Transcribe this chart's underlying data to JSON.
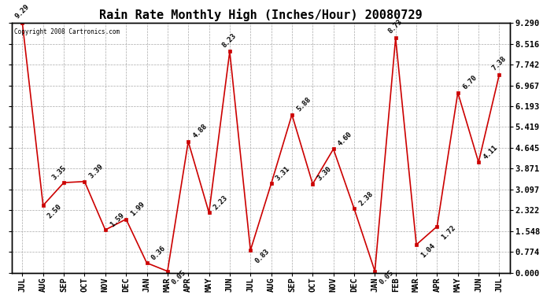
{
  "title": "Rain Rate Monthly High (Inches/Hour) 20080729",
  "copyright": "Copyright 2008 Cartronics.com",
  "categories": [
    "JUL",
    "AUG",
    "SEP",
    "OCT",
    "NOV",
    "DEC",
    "JAN",
    "MAR",
    "APR",
    "MAY",
    "JUN",
    "JUL",
    "AUG",
    "SEP",
    "OCT",
    "NOV",
    "DEC",
    "JAN",
    "FEB",
    "MAR",
    "APR",
    "MAY",
    "JUN",
    "JUL"
  ],
  "values": [
    9.29,
    2.5,
    3.35,
    3.39,
    1.59,
    1.99,
    0.36,
    0.05,
    4.88,
    2.23,
    8.23,
    0.83,
    3.31,
    5.88,
    3.3,
    4.6,
    2.38,
    0.05,
    8.73,
    1.04,
    1.72,
    6.7,
    4.11,
    7.38
  ],
  "line_color": "#cc0000",
  "marker_color": "#cc0000",
  "background_color": "#ffffff",
  "grid_color": "#aaaaaa",
  "ylim": [
    0.0,
    9.29
  ],
  "yticks": [
    0.0,
    0.774,
    1.548,
    2.322,
    3.097,
    3.871,
    4.645,
    5.419,
    6.193,
    6.967,
    7.742,
    8.516,
    9.29
  ],
  "title_fontsize": 11,
  "tick_fontsize": 7.5,
  "annotation_fontsize": 6.5,
  "figsize": [
    6.9,
    3.75
  ],
  "dpi": 100
}
